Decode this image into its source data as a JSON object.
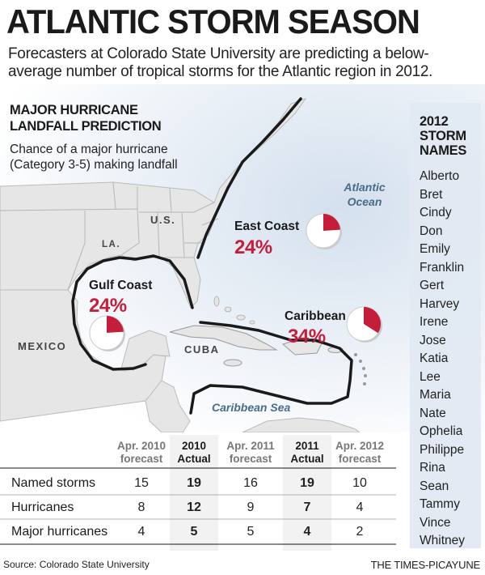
{
  "title": "ATLANTIC STORM SEASON",
  "subtitle": "Forecasters at Colorado State University are predicting a below-average number of tropical storms for the Atlantic region in 2012.",
  "landfall": {
    "heading_line1": "MAJOR HURRICANE",
    "heading_line2": "LANDFALL PREDICTION",
    "description": "Chance of a major hurricane (Category 3-5) making landfall"
  },
  "map_labels": {
    "us": "U.S.",
    "la": "LA.",
    "mexico": "MEXICO",
    "cuba": "CUBA",
    "atlantic_line1": "Atlantic",
    "atlantic_line2": "Ocean",
    "caribbean_sea": "Caribbean Sea"
  },
  "colors": {
    "accent_red": "#c41e3a",
    "ocean": "#dfe7f1",
    "land": "#e6e6e6",
    "coast_line": "#1a1a1a"
  },
  "chart_data": [
    {
      "type": "pie",
      "title": "Gulf Coast",
      "label": "24%",
      "values": [
        24,
        76
      ]
    },
    {
      "type": "pie",
      "title": "East Coast",
      "label": "24%",
      "values": [
        24,
        76
      ]
    },
    {
      "type": "pie",
      "title": "Caribbean",
      "label": "34%",
      "values": [
        34,
        66
      ]
    },
    {
      "type": "table",
      "columns": [
        {
          "line1": "Apr. 2010",
          "line2": "forecast",
          "style": "gray"
        },
        {
          "line1": "2010",
          "line2": "Actual",
          "style": "dark"
        },
        {
          "line1": "Apr. 2011",
          "line2": "forecast",
          "style": "gray"
        },
        {
          "line1": "2011",
          "line2": "Actual",
          "style": "dark"
        },
        {
          "line1": "Apr. 2012",
          "line2": "forecast",
          "style": "gray"
        }
      ],
      "rows": [
        {
          "label": "Named storms",
          "values": [
            "15",
            "19",
            "16",
            "19",
            "10"
          ]
        },
        {
          "label": "Hurricanes",
          "values": [
            "8",
            "12",
            "9",
            "7",
            "4"
          ]
        },
        {
          "label": "Major hurricanes",
          "values": [
            "4",
            "5",
            "5",
            "4",
            "2"
          ]
        }
      ]
    }
  ],
  "storm_names": {
    "header_line1": "2012",
    "header_line2": "STORM",
    "header_line3": "NAMES",
    "names": [
      "Alberto",
      "Bret",
      "Cindy",
      "Don",
      "Emily",
      "Franklin",
      "Gert",
      "Harvey",
      "Irene",
      "Jose",
      "Katia",
      "Lee",
      "Maria",
      "Nate",
      "Ophelia",
      "Philippe",
      "Rina",
      "Sean",
      "Tammy",
      "Vince",
      "Whitney"
    ]
  },
  "source": "Source: Colorado State University",
  "credit": "THE TIMES-PICAYUNE"
}
